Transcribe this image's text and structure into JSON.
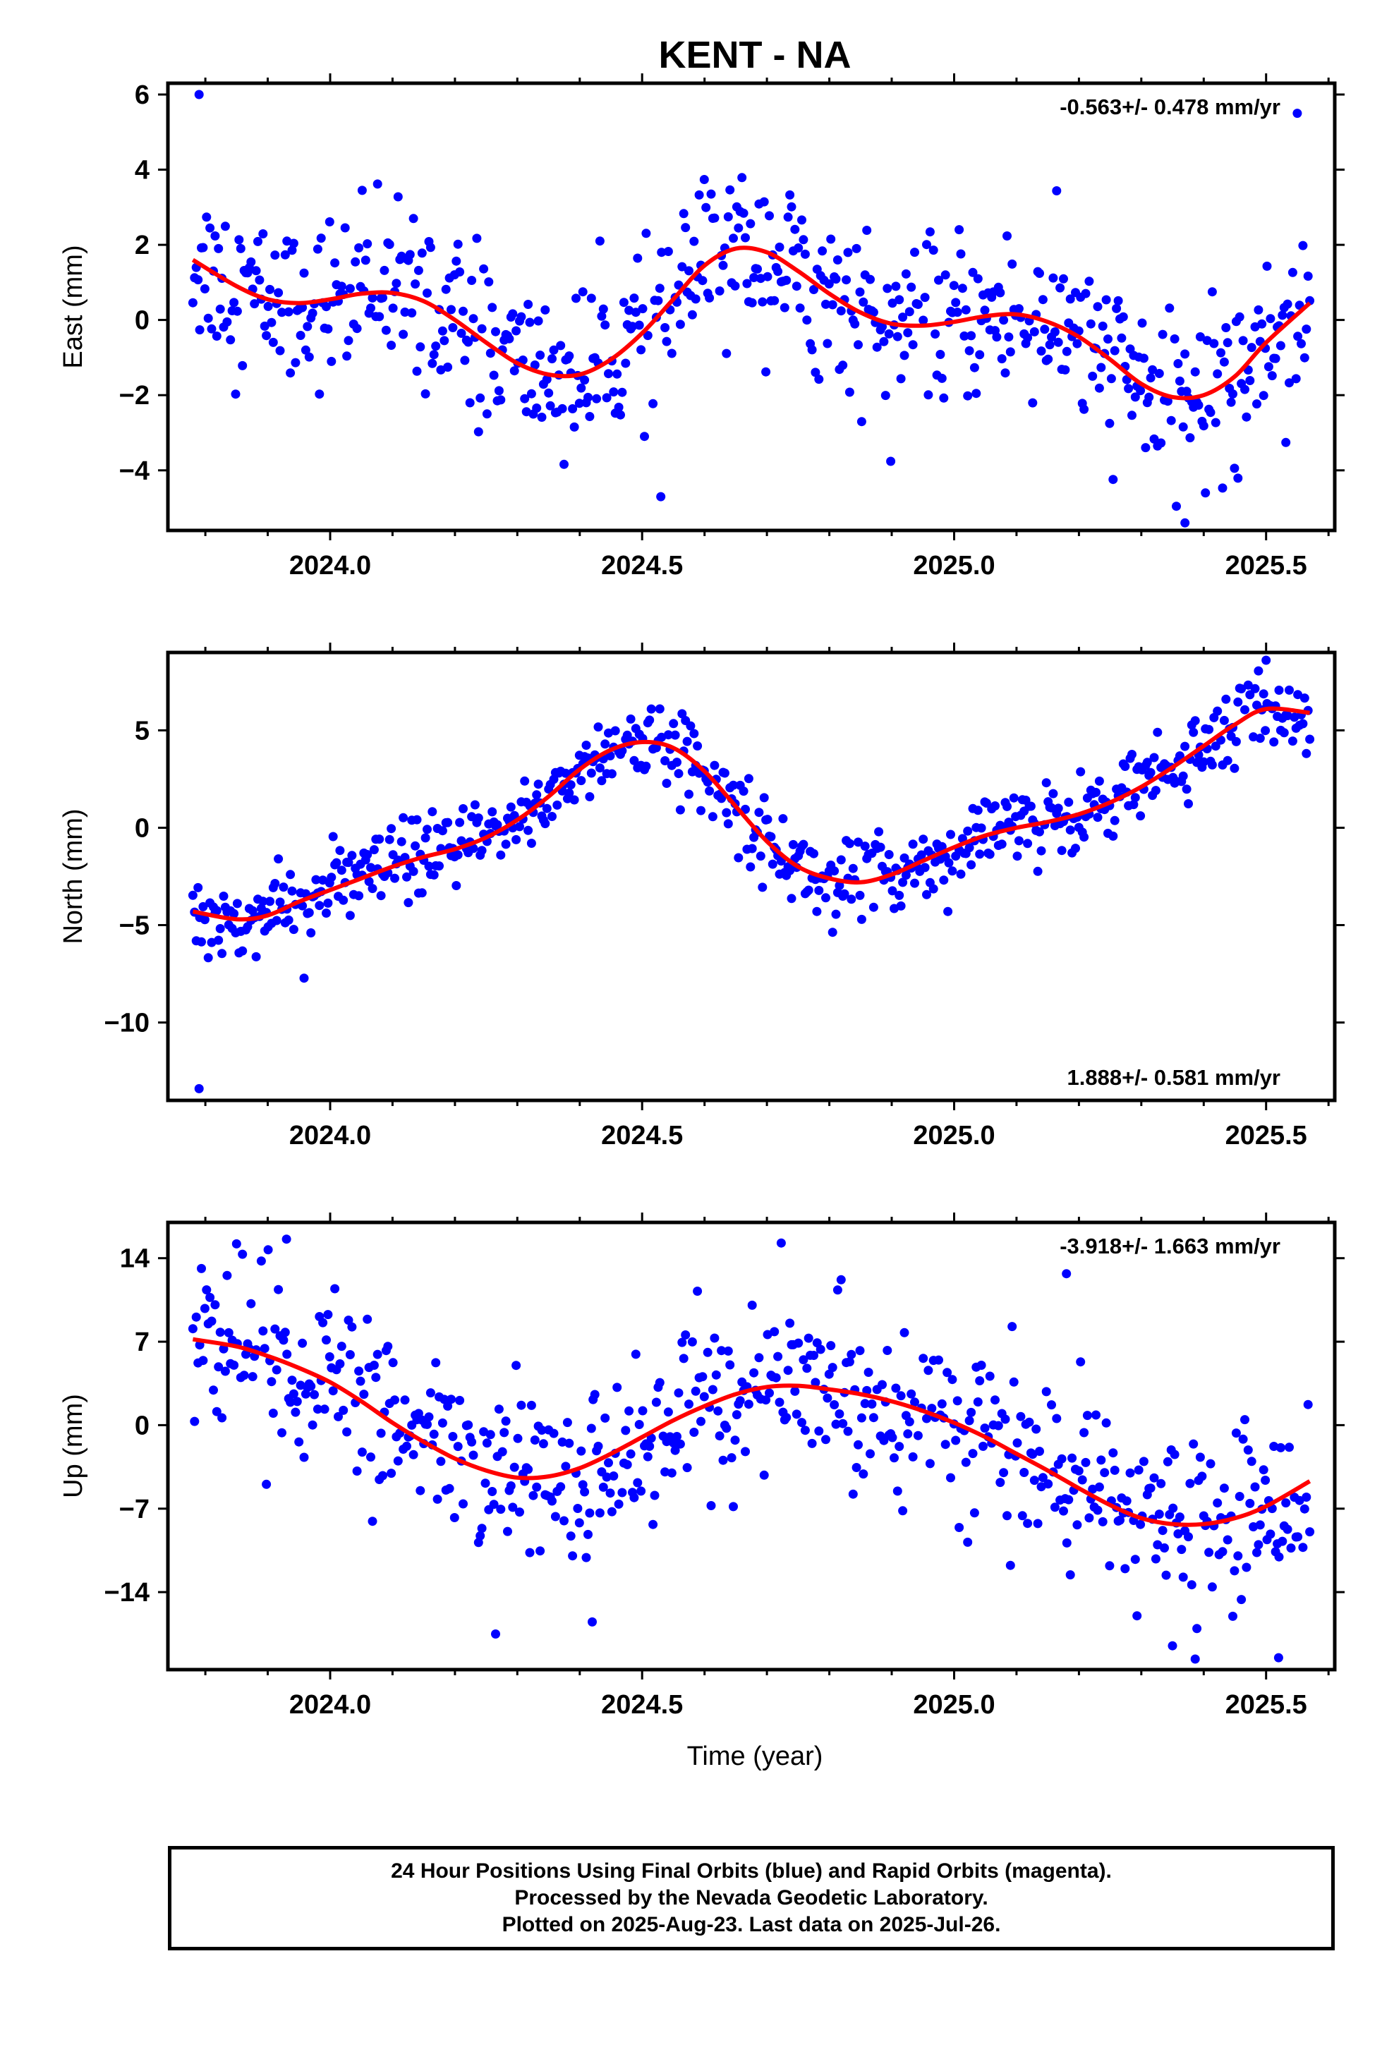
{
  "chart_data": {
    "type": "scatter",
    "title": "KENT - NA",
    "xlabel": "Time (year)",
    "xlim": [
      2023.74,
      2025.61
    ],
    "x_ticks": [
      2024.0,
      2024.5,
      2025.0,
      2025.5
    ],
    "x_tick_labels": [
      "2024.0",
      "2024.5",
      "2025.0",
      "2025.5"
    ],
    "point_color": "#0000ff",
    "fit_color": "#ff0000",
    "x_range_data": [
      2023.78,
      2025.57
    ],
    "panels": [
      {
        "id": "east",
        "ylabel": "East (mm)",
        "ylim": [
          -5.6,
          6.3
        ],
        "y_ticks": [
          -4,
          -2,
          0,
          2,
          4,
          6
        ],
        "rate_label": "-0.563+/- 0.478 mm/yr",
        "rate_position": "top-right",
        "fit_curve": {
          "x": [
            2023.78,
            2023.85,
            2023.9,
            2023.95,
            2024.0,
            2024.05,
            2024.1,
            2024.15,
            2024.2,
            2024.25,
            2024.3,
            2024.35,
            2024.4,
            2024.45,
            2024.5,
            2024.55,
            2024.6,
            2024.65,
            2024.7,
            2024.75,
            2024.8,
            2024.85,
            2024.9,
            2024.95,
            2025.0,
            2025.05,
            2025.1,
            2025.15,
            2025.2,
            2025.25,
            2025.3,
            2025.35,
            2025.4,
            2025.45,
            2025.5,
            2025.57
          ],
          "y": [
            1.6,
            0.9,
            0.55,
            0.45,
            0.55,
            0.7,
            0.72,
            0.5,
            0.0,
            -0.6,
            -1.15,
            -1.45,
            -1.45,
            -1.05,
            -0.35,
            0.55,
            1.45,
            1.9,
            1.8,
            1.3,
            0.7,
            0.2,
            -0.1,
            -0.15,
            -0.05,
            0.1,
            0.15,
            -0.05,
            -0.45,
            -1.05,
            -1.7,
            -2.05,
            -2.0,
            -1.5,
            -0.6,
            0.45
          ]
        },
        "residual_spread": 1.1,
        "outliers": [
          [
            2023.79,
            6.0
          ],
          [
            2024.53,
            -4.7
          ],
          [
            2025.37,
            -5.4
          ],
          [
            2025.55,
            5.5
          ]
        ]
      },
      {
        "id": "north",
        "ylabel": "North (mm)",
        "ylim": [
          -14.0,
          9.0
        ],
        "y_ticks": [
          -10,
          -5,
          0,
          5
        ],
        "rate_label": "1.888+/- 0.581 mm/yr",
        "rate_position": "bottom-right",
        "fit_curve": {
          "x": [
            2023.78,
            2023.85,
            2023.9,
            2023.95,
            2024.0,
            2024.05,
            2024.1,
            2024.15,
            2024.2,
            2024.25,
            2024.3,
            2024.35,
            2024.4,
            2024.45,
            2024.5,
            2024.55,
            2024.6,
            2024.65,
            2024.7,
            2024.75,
            2024.8,
            2024.85,
            2024.9,
            2024.95,
            2025.0,
            2025.05,
            2025.1,
            2025.15,
            2025.2,
            2025.25,
            2025.3,
            2025.35,
            2025.4,
            2025.45,
            2025.5,
            2025.57
          ],
          "y": [
            -4.3,
            -4.7,
            -4.5,
            -3.8,
            -3.2,
            -2.6,
            -2.0,
            -1.5,
            -1.1,
            -0.5,
            0.4,
            1.6,
            3.0,
            4.0,
            4.4,
            4.1,
            2.9,
            1.1,
            -0.7,
            -2.0,
            -2.6,
            -2.8,
            -2.4,
            -1.7,
            -1.0,
            -0.4,
            0.0,
            0.3,
            0.7,
            1.3,
            2.1,
            3.1,
            4.2,
            5.3,
            6.1,
            5.9
          ]
        },
        "residual_spread": 1.0,
        "outliers": [
          [
            2023.79,
            -13.4
          ],
          [
            2024.78,
            -4.3
          ],
          [
            2024.99,
            -4.3
          ],
          [
            2025.5,
            8.6
          ]
        ]
      },
      {
        "id": "up",
        "ylabel": "Up (mm)",
        "ylim": [
          -20.5,
          17.0
        ],
        "y_ticks": [
          -14,
          -7,
          0,
          7,
          14
        ],
        "rate_label": "-3.918+/- 1.663 mm/yr",
        "rate_position": "top-right",
        "fit_curve": {
          "x": [
            2023.78,
            2023.85,
            2023.9,
            2023.95,
            2024.0,
            2024.05,
            2024.1,
            2024.15,
            2024.2,
            2024.25,
            2024.3,
            2024.35,
            2024.4,
            2024.45,
            2024.5,
            2024.55,
            2024.6,
            2024.65,
            2024.7,
            2024.75,
            2024.8,
            2024.85,
            2024.9,
            2024.95,
            2025.0,
            2025.05,
            2025.1,
            2025.15,
            2025.2,
            2025.25,
            2025.3,
            2025.35,
            2025.4,
            2025.45,
            2025.5,
            2025.57
          ],
          "y": [
            7.2,
            6.6,
            5.8,
            4.8,
            3.6,
            2.0,
            0.2,
            -1.4,
            -2.8,
            -3.8,
            -4.4,
            -4.3,
            -3.6,
            -2.4,
            -1.0,
            0.4,
            1.6,
            2.6,
            3.2,
            3.3,
            3.0,
            2.6,
            2.0,
            1.2,
            0.2,
            -1.0,
            -2.4,
            -3.8,
            -5.3,
            -6.7,
            -7.8,
            -8.3,
            -8.3,
            -7.8,
            -6.8,
            -4.7
          ]
        },
        "residual_spread": 3.6,
        "outliers": [
          [
            2023.85,
            15.2
          ],
          [
            2023.93,
            15.6
          ],
          [
            2024.42,
            -16.5
          ],
          [
            2025.18,
            12.7
          ],
          [
            2025.35,
            -18.5
          ],
          [
            2025.52,
            -19.5
          ]
        ]
      }
    ],
    "footer": [
      "24 Hour Positions Using Final Orbits (blue) and Rapid Orbits (magenta).",
      "Processed by the Nevada Geodetic Laboratory.",
      "Plotted on 2025-Aug-23. Last data on 2025-Jul-26."
    ]
  }
}
